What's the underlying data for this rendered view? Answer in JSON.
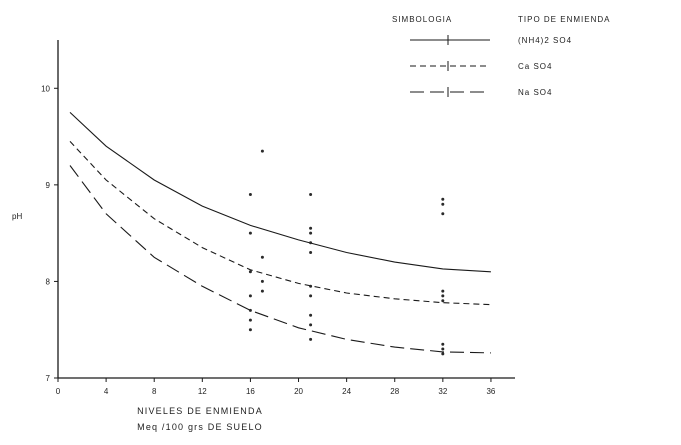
{
  "chart_data": {
    "type": "scatter",
    "ylabel": "pH",
    "xlabel_line1": "NIVELES DE ENMIENDA",
    "xlabel_line2": "Meq /100 grs DE SUELO",
    "xlim": [
      0,
      38
    ],
    "ylim": [
      7,
      10.5
    ],
    "xticks": [
      0,
      4,
      8,
      12,
      16,
      20,
      24,
      28,
      32,
      36
    ],
    "xtick_labels": [
      "0",
      "4",
      "8",
      "12",
      "16",
      "20",
      "24",
      "28",
      "32",
      "36"
    ],
    "yticks": [
      7,
      8,
      9,
      10
    ],
    "ytick_labels": [
      "7",
      "8",
      "9",
      "10"
    ],
    "legend_header": {
      "symbol": "SIMBOLOGIA",
      "type": "TIPO DE ENMIENDA"
    },
    "legend_position": "top-right",
    "series": [
      {
        "name": "(NH4)2 SO4",
        "style": "solid",
        "curve": [
          [
            1,
            9.75
          ],
          [
            4,
            9.4
          ],
          [
            8,
            9.05
          ],
          [
            12,
            8.78
          ],
          [
            16,
            8.58
          ],
          [
            20,
            8.43
          ],
          [
            24,
            8.3
          ],
          [
            28,
            8.2
          ],
          [
            32,
            8.13
          ],
          [
            36,
            8.1
          ]
        ],
        "points": [
          [
            16,
            8.5
          ],
          [
            16,
            8.9
          ],
          [
            17,
            8.25
          ],
          [
            21,
            8.9
          ],
          [
            21,
            8.55
          ],
          [
            21,
            8.5
          ],
          [
            21,
            8.4
          ],
          [
            21,
            8.3
          ],
          [
            32,
            8.8
          ],
          [
            32,
            8.85
          ],
          [
            32,
            8.7
          ]
        ]
      },
      {
        "name": "Ca SO4",
        "style": "dashed",
        "curve": [
          [
            1,
            9.45
          ],
          [
            4,
            9.05
          ],
          [
            8,
            8.65
          ],
          [
            12,
            8.35
          ],
          [
            16,
            8.12
          ],
          [
            20,
            7.98
          ],
          [
            24,
            7.88
          ],
          [
            28,
            7.82
          ],
          [
            32,
            7.78
          ],
          [
            36,
            7.76
          ]
        ],
        "points": [
          [
            16,
            8.1
          ],
          [
            16,
            7.85
          ],
          [
            17,
            8.0
          ],
          [
            17,
            7.9
          ],
          [
            21,
            7.85
          ],
          [
            21,
            7.95
          ],
          [
            32,
            7.9
          ],
          [
            32,
            7.85
          ],
          [
            32,
            7.8
          ]
        ]
      },
      {
        "name": "Na SO4",
        "style": "long-dash",
        "curve": [
          [
            1,
            9.2
          ],
          [
            4,
            8.7
          ],
          [
            8,
            8.25
          ],
          [
            12,
            7.95
          ],
          [
            16,
            7.7
          ],
          [
            20,
            7.52
          ],
          [
            24,
            7.4
          ],
          [
            28,
            7.32
          ],
          [
            32,
            7.27
          ],
          [
            36,
            7.26
          ]
        ],
        "points": [
          [
            16,
            7.5
          ],
          [
            16,
            7.6
          ],
          [
            16,
            7.7
          ],
          [
            21,
            7.4
          ],
          [
            21,
            7.55
          ],
          [
            21,
            7.65
          ],
          [
            32,
            7.35
          ],
          [
            32,
            7.3
          ],
          [
            32,
            7.25
          ],
          [
            17,
            9.35
          ]
        ]
      }
    ]
  }
}
